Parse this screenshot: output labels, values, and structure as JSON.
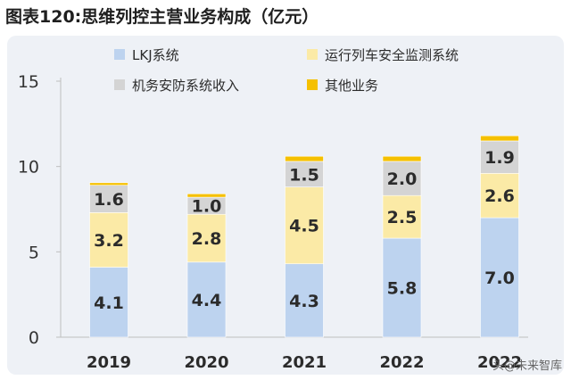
{
  "title": "图表120:思维列控主营业务构成（亿元）",
  "watermark": "头@未来智库",
  "chart_data": {
    "type": "bar",
    "stacked": true,
    "categories": [
      "2019",
      "2020",
      "2021",
      "2022",
      "2022"
    ],
    "series": [
      {
        "name": "LKJ系统",
        "color": "#bdd3ef",
        "values": [
          4.1,
          4.4,
          4.3,
          5.8,
          7.0
        ],
        "labels": [
          "4.1",
          "4.4",
          "4.3",
          "5.8",
          "7.0"
        ]
      },
      {
        "name": "运行列车安全监测系统",
        "color": "#fbeaa6",
        "values": [
          3.2,
          2.8,
          4.5,
          2.5,
          2.6
        ],
        "labels": [
          "3.2",
          "2.8",
          "4.5",
          "2.5",
          "2.6"
        ]
      },
      {
        "name": "机务安防系统收入",
        "color": "#d4d4d4",
        "values": [
          1.6,
          1.0,
          1.5,
          2.0,
          1.9
        ],
        "labels": [
          "1.6",
          "1.0",
          "1.5",
          "2.0",
          "1.9"
        ]
      },
      {
        "name": "其他业务",
        "color": "#f5c000",
        "values": [
          0.15,
          0.2,
          0.3,
          0.3,
          0.3
        ],
        "labels": [
          "",
          "",
          "",
          "",
          ""
        ]
      }
    ],
    "ylim": [
      0,
      15
    ],
    "yticks": [
      "0",
      "5",
      "10",
      "15"
    ],
    "ytick_values": [
      0,
      5,
      10,
      15
    ],
    "xlabel": "",
    "ylabel": "",
    "grid": false,
    "legend": "top"
  }
}
